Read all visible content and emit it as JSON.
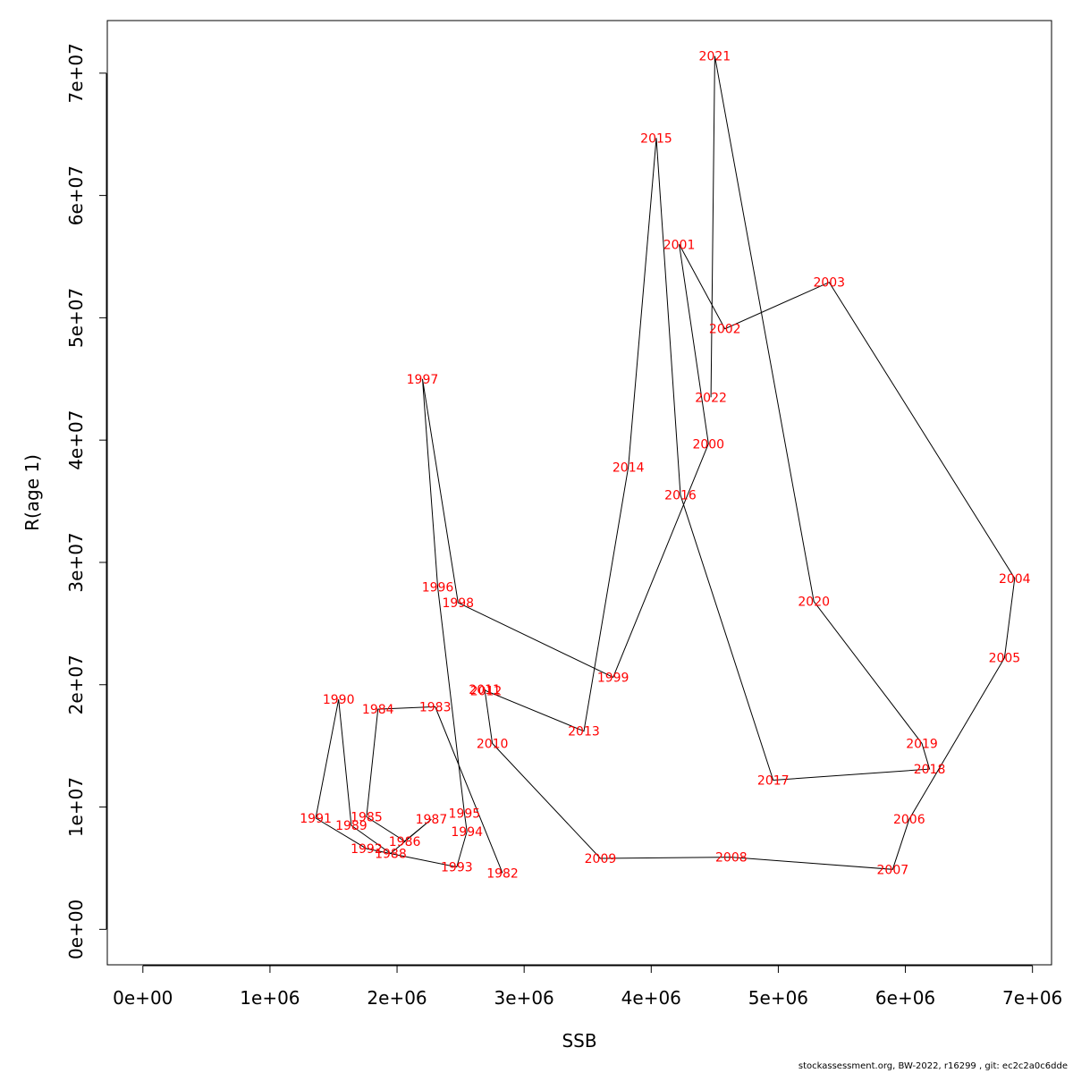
{
  "chart_data": {
    "type": "line",
    "xlabel": "SSB",
    "ylabel": "R(age 1)",
    "xlim": [
      -280000,
      7150000
    ],
    "ylim": [
      -2900000,
      74300000
    ],
    "x_ticks": [
      0,
      1000000,
      2000000,
      3000000,
      4000000,
      5000000,
      6000000,
      7000000
    ],
    "x_tick_labels": [
      "0e+00",
      "1e+06",
      "2e+06",
      "3e+06",
      "4e+06",
      "5e+06",
      "6e+06",
      "7e+06"
    ],
    "y_ticks": [
      0,
      10000000,
      20000000,
      30000000,
      40000000,
      50000000,
      60000000,
      70000000
    ],
    "y_tick_labels": [
      "0e+00",
      "1e+07",
      "2e+07",
      "3e+07",
      "4e+07",
      "5e+07",
      "6e+07",
      "7e+07"
    ],
    "points": [
      {
        "year": "1982",
        "ssb": 2830000,
        "r": 4600000
      },
      {
        "year": "1983",
        "ssb": 2300000,
        "r": 18200000
      },
      {
        "year": "1984",
        "ssb": 1850000,
        "r": 18000000
      },
      {
        "year": "1985",
        "ssb": 1760000,
        "r": 9200000
      },
      {
        "year": "1986",
        "ssb": 2060000,
        "r": 7200000
      },
      {
        "year": "1987",
        "ssb": 2270000,
        "r": 9000000
      },
      {
        "year": "1988",
        "ssb": 1950000,
        "r": 6200000
      },
      {
        "year": "1989",
        "ssb": 1640000,
        "r": 8500000
      },
      {
        "year": "1990",
        "ssb": 1540000,
        "r": 18800000
      },
      {
        "year": "1991",
        "ssb": 1360000,
        "r": 9100000
      },
      {
        "year": "1992",
        "ssb": 1760000,
        "r": 6600000
      },
      {
        "year": "1993",
        "ssb": 2470000,
        "r": 5100000
      },
      {
        "year": "1994",
        "ssb": 2550000,
        "r": 8000000
      },
      {
        "year": "1995",
        "ssb": 2530000,
        "r": 9500000
      },
      {
        "year": "1996",
        "ssb": 2320000,
        "r": 28000000
      },
      {
        "year": "1997",
        "ssb": 2200000,
        "r": 45000000
      },
      {
        "year": "1998",
        "ssb": 2480000,
        "r": 26700000
      },
      {
        "year": "1999",
        "ssb": 3700000,
        "r": 20600000
      },
      {
        "year": "2000",
        "ssb": 4450000,
        "r": 39700000
      },
      {
        "year": "2001",
        "ssb": 4220000,
        "r": 56000000
      },
      {
        "year": "2002",
        "ssb": 4580000,
        "r": 49100000
      },
      {
        "year": "2003",
        "ssb": 5400000,
        "r": 52900000
      },
      {
        "year": "2004",
        "ssb": 6860000,
        "r": 28700000
      },
      {
        "year": "2005",
        "ssb": 6780000,
        "r": 22200000
      },
      {
        "year": "2006",
        "ssb": 6030000,
        "r": 9000000
      },
      {
        "year": "2007",
        "ssb": 5900000,
        "r": 4900000
      },
      {
        "year": "2008",
        "ssb": 4630000,
        "r": 5900000
      },
      {
        "year": "2009",
        "ssb": 3600000,
        "r": 5800000
      },
      {
        "year": "2010",
        "ssb": 2750000,
        "r": 15200000
      },
      {
        "year": "2011",
        "ssb": 2690000,
        "r": 19600000
      },
      {
        "year": "2012",
        "ssb": 2700000,
        "r": 19500000
      },
      {
        "year": "2013",
        "ssb": 3470000,
        "r": 16200000
      },
      {
        "year": "2014",
        "ssb": 3820000,
        "r": 37800000
      },
      {
        "year": "2015",
        "ssb": 4040000,
        "r": 64700000
      },
      {
        "year": "2016",
        "ssb": 4230000,
        "r": 35500000
      },
      {
        "year": "2017",
        "ssb": 4960000,
        "r": 12200000
      },
      {
        "year": "2018",
        "ssb": 6190000,
        "r": 13100000
      },
      {
        "year": "2019",
        "ssb": 6130000,
        "r": 15200000
      },
      {
        "year": "2020",
        "ssb": 5280000,
        "r": 26800000
      },
      {
        "year": "2021",
        "ssb": 4500000,
        "r": 71400000
      },
      {
        "year": "2022",
        "ssb": 4470000,
        "r": 43500000
      }
    ]
  },
  "footer": "stockassessment.org, BW-2022, r16299 , git: ec2c2a0c6dde"
}
